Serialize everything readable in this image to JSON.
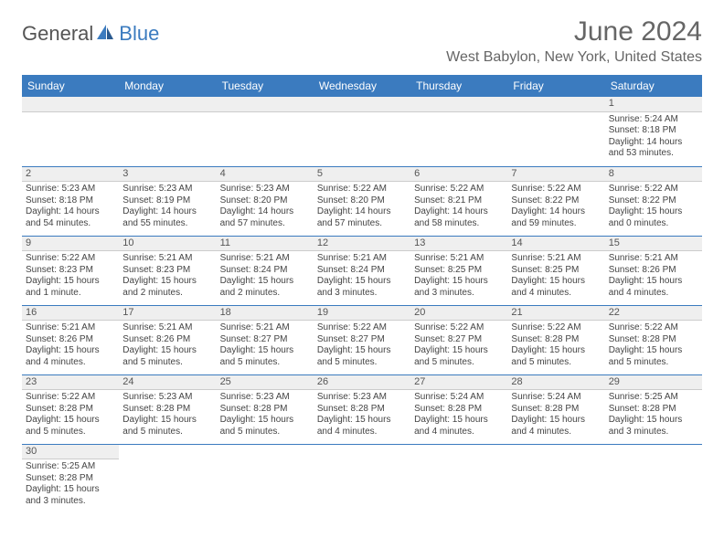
{
  "logo": {
    "text1": "General",
    "text2": "Blue"
  },
  "title": "June 2024",
  "location": "West Babylon, New York, United States",
  "colors": {
    "header_bg": "#3b7bbf",
    "header_fg": "#ffffff",
    "daybar_bg": "#efefef",
    "text": "#444444"
  },
  "day_headers": [
    "Sunday",
    "Monday",
    "Tuesday",
    "Wednesday",
    "Thursday",
    "Friday",
    "Saturday"
  ],
  "weeks": [
    [
      null,
      null,
      null,
      null,
      null,
      null,
      {
        "n": "1",
        "sr": "Sunrise: 5:24 AM",
        "ss": "Sunset: 8:18 PM",
        "dl": "Daylight: 14 hours and 53 minutes."
      }
    ],
    [
      {
        "n": "2",
        "sr": "Sunrise: 5:23 AM",
        "ss": "Sunset: 8:18 PM",
        "dl": "Daylight: 14 hours and 54 minutes."
      },
      {
        "n": "3",
        "sr": "Sunrise: 5:23 AM",
        "ss": "Sunset: 8:19 PM",
        "dl": "Daylight: 14 hours and 55 minutes."
      },
      {
        "n": "4",
        "sr": "Sunrise: 5:23 AM",
        "ss": "Sunset: 8:20 PM",
        "dl": "Daylight: 14 hours and 57 minutes."
      },
      {
        "n": "5",
        "sr": "Sunrise: 5:22 AM",
        "ss": "Sunset: 8:20 PM",
        "dl": "Daylight: 14 hours and 57 minutes."
      },
      {
        "n": "6",
        "sr": "Sunrise: 5:22 AM",
        "ss": "Sunset: 8:21 PM",
        "dl": "Daylight: 14 hours and 58 minutes."
      },
      {
        "n": "7",
        "sr": "Sunrise: 5:22 AM",
        "ss": "Sunset: 8:22 PM",
        "dl": "Daylight: 14 hours and 59 minutes."
      },
      {
        "n": "8",
        "sr": "Sunrise: 5:22 AM",
        "ss": "Sunset: 8:22 PM",
        "dl": "Daylight: 15 hours and 0 minutes."
      }
    ],
    [
      {
        "n": "9",
        "sr": "Sunrise: 5:22 AM",
        "ss": "Sunset: 8:23 PM",
        "dl": "Daylight: 15 hours and 1 minute."
      },
      {
        "n": "10",
        "sr": "Sunrise: 5:21 AM",
        "ss": "Sunset: 8:23 PM",
        "dl": "Daylight: 15 hours and 2 minutes."
      },
      {
        "n": "11",
        "sr": "Sunrise: 5:21 AM",
        "ss": "Sunset: 8:24 PM",
        "dl": "Daylight: 15 hours and 2 minutes."
      },
      {
        "n": "12",
        "sr": "Sunrise: 5:21 AM",
        "ss": "Sunset: 8:24 PM",
        "dl": "Daylight: 15 hours and 3 minutes."
      },
      {
        "n": "13",
        "sr": "Sunrise: 5:21 AM",
        "ss": "Sunset: 8:25 PM",
        "dl": "Daylight: 15 hours and 3 minutes."
      },
      {
        "n": "14",
        "sr": "Sunrise: 5:21 AM",
        "ss": "Sunset: 8:25 PM",
        "dl": "Daylight: 15 hours and 4 minutes."
      },
      {
        "n": "15",
        "sr": "Sunrise: 5:21 AM",
        "ss": "Sunset: 8:26 PM",
        "dl": "Daylight: 15 hours and 4 minutes."
      }
    ],
    [
      {
        "n": "16",
        "sr": "Sunrise: 5:21 AM",
        "ss": "Sunset: 8:26 PM",
        "dl": "Daylight: 15 hours and 4 minutes."
      },
      {
        "n": "17",
        "sr": "Sunrise: 5:21 AM",
        "ss": "Sunset: 8:26 PM",
        "dl": "Daylight: 15 hours and 5 minutes."
      },
      {
        "n": "18",
        "sr": "Sunrise: 5:21 AM",
        "ss": "Sunset: 8:27 PM",
        "dl": "Daylight: 15 hours and 5 minutes."
      },
      {
        "n": "19",
        "sr": "Sunrise: 5:22 AM",
        "ss": "Sunset: 8:27 PM",
        "dl": "Daylight: 15 hours and 5 minutes."
      },
      {
        "n": "20",
        "sr": "Sunrise: 5:22 AM",
        "ss": "Sunset: 8:27 PM",
        "dl": "Daylight: 15 hours and 5 minutes."
      },
      {
        "n": "21",
        "sr": "Sunrise: 5:22 AM",
        "ss": "Sunset: 8:28 PM",
        "dl": "Daylight: 15 hours and 5 minutes."
      },
      {
        "n": "22",
        "sr": "Sunrise: 5:22 AM",
        "ss": "Sunset: 8:28 PM",
        "dl": "Daylight: 15 hours and 5 minutes."
      }
    ],
    [
      {
        "n": "23",
        "sr": "Sunrise: 5:22 AM",
        "ss": "Sunset: 8:28 PM",
        "dl": "Daylight: 15 hours and 5 minutes."
      },
      {
        "n": "24",
        "sr": "Sunrise: 5:23 AM",
        "ss": "Sunset: 8:28 PM",
        "dl": "Daylight: 15 hours and 5 minutes."
      },
      {
        "n": "25",
        "sr": "Sunrise: 5:23 AM",
        "ss": "Sunset: 8:28 PM",
        "dl": "Daylight: 15 hours and 5 minutes."
      },
      {
        "n": "26",
        "sr": "Sunrise: 5:23 AM",
        "ss": "Sunset: 8:28 PM",
        "dl": "Daylight: 15 hours and 4 minutes."
      },
      {
        "n": "27",
        "sr": "Sunrise: 5:24 AM",
        "ss": "Sunset: 8:28 PM",
        "dl": "Daylight: 15 hours and 4 minutes."
      },
      {
        "n": "28",
        "sr": "Sunrise: 5:24 AM",
        "ss": "Sunset: 8:28 PM",
        "dl": "Daylight: 15 hours and 4 minutes."
      },
      {
        "n": "29",
        "sr": "Sunrise: 5:25 AM",
        "ss": "Sunset: 8:28 PM",
        "dl": "Daylight: 15 hours and 3 minutes."
      }
    ],
    [
      {
        "n": "30",
        "sr": "Sunrise: 5:25 AM",
        "ss": "Sunset: 8:28 PM",
        "dl": "Daylight: 15 hours and 3 minutes."
      },
      null,
      null,
      null,
      null,
      null,
      null
    ]
  ]
}
